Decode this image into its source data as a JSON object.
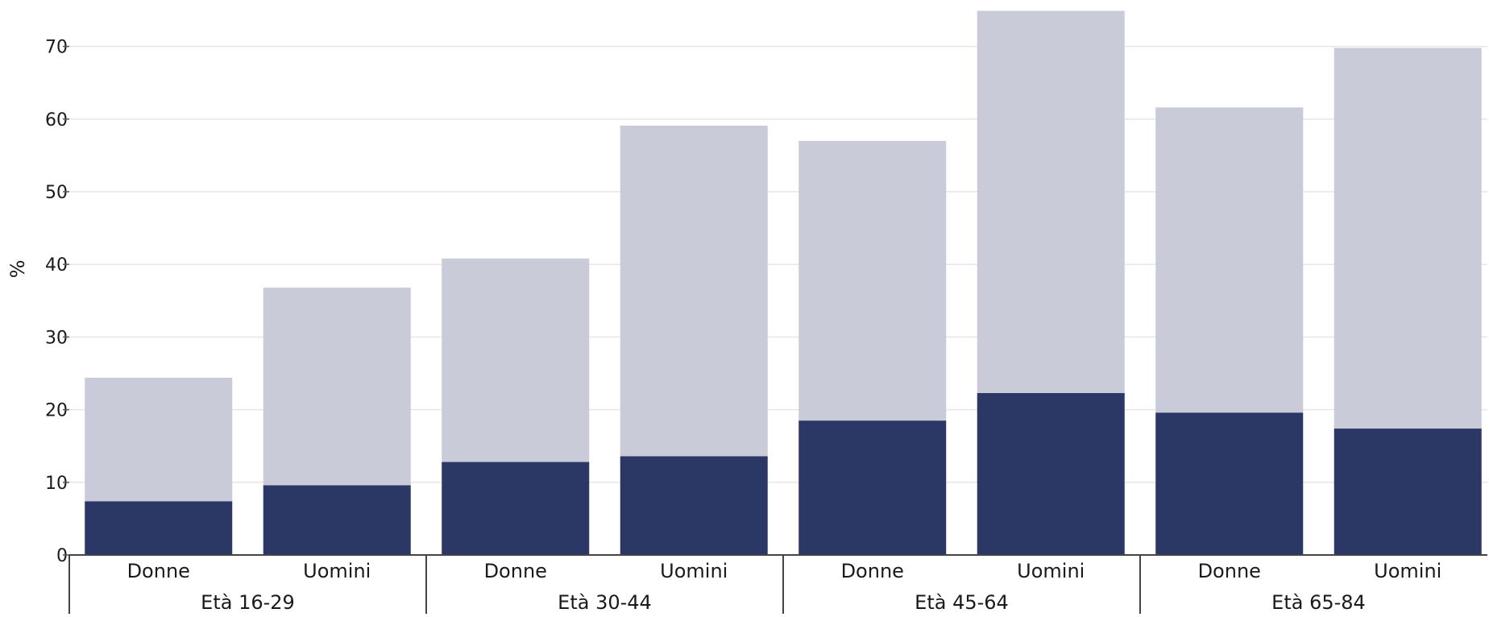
{
  "chart_data": {
    "type": "bar",
    "stacked": true,
    "ylabel": "%",
    "xlabel": "",
    "title": "",
    "ylim": [
      0,
      75
    ],
    "yticks": [
      0,
      10,
      20,
      30,
      40,
      50,
      60,
      70
    ],
    "grid": "horizontal",
    "legend": "none",
    "groups": [
      "Età 16-29",
      "Età 30-44",
      "Età 45-64",
      "Età 65-84"
    ],
    "categories": [
      "Donne",
      "Uomini",
      "Donne",
      "Uomini",
      "Donne",
      "Uomini",
      "Donne",
      "Uomini"
    ],
    "category_group_index": [
      0,
      0,
      1,
      1,
      2,
      2,
      3,
      3
    ],
    "series": [
      {
        "values": [
          7.4,
          9.6,
          12.8,
          13.6,
          18.5,
          22.3,
          19.6,
          17.4
        ],
        "color": "#2b3764"
      },
      {
        "values": [
          17.0,
          27.2,
          28.0,
          45.5,
          38.5,
          52.6,
          42.0,
          52.4
        ],
        "color": "#c9cbd8"
      }
    ],
    "totals": [
      24.4,
      36.8,
      40.8,
      59.1,
      57.0,
      74.9,
      61.6,
      69.8
    ]
  }
}
